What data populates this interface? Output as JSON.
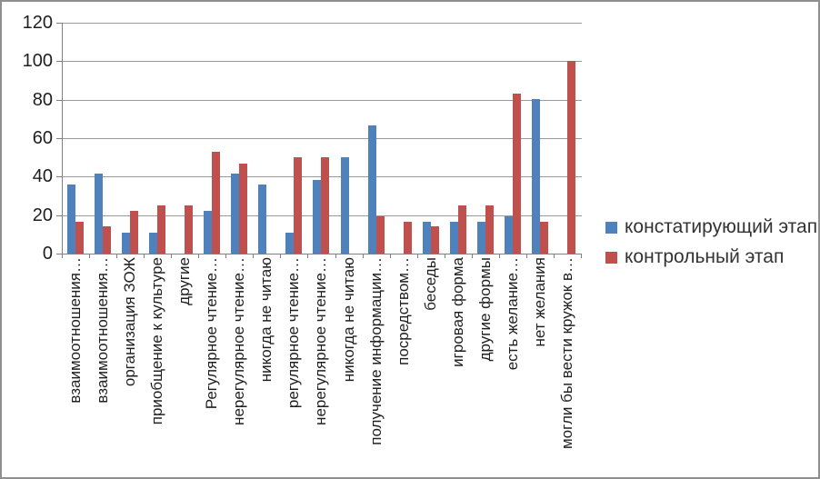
{
  "chart_data": {
    "type": "bar",
    "title": "",
    "categories": [
      "взаимоотношения…",
      "взаимоотношения…",
      "организация ЗОЖ",
      "приобщение к культуре",
      "другие",
      "Регулярное чтение…",
      "нерегулярное чтение…",
      "никогда не читаю",
      "регулярное чтение…",
      "нерегулярное чтение…",
      "никогда не читаю",
      "получение информации…",
      "посредством…",
      "беседы",
      "игровая форма",
      "другие формы",
      "есть желание…",
      "нет желания",
      "могли бы вести кружок в…"
    ],
    "series": [
      {
        "name": "констатирующий этап",
        "color": "#4F81BD",
        "values": [
          36,
          41.5,
          11,
          11,
          0,
          22,
          41.5,
          36,
          11,
          38.5,
          50,
          66.5,
          0,
          16.5,
          16.5,
          16.5,
          19.5,
          80.5,
          0
        ]
      },
      {
        "name": "контрольный этап",
        "color": "#C0504D",
        "values": [
          16.5,
          14,
          22,
          25,
          25,
          53,
          47,
          0,
          50,
          50,
          0,
          19.5,
          16.5,
          14,
          25,
          25,
          83,
          16.5,
          100
        ]
      }
    ],
    "xlabel": "",
    "ylabel": "",
    "ylim": [
      0,
      120
    ],
    "yticks": [
      0,
      20,
      40,
      60,
      80,
      100,
      120
    ],
    "grid": "horizontal",
    "legend_position": "right"
  },
  "colors": {
    "background": "#FFFFFF",
    "frame_border": "#8F8F8F",
    "gridline": "#999999",
    "axis": "#808080",
    "text": "#1F1F1F",
    "series_blue": "#4F81BD",
    "series_red": "#C0504D"
  }
}
